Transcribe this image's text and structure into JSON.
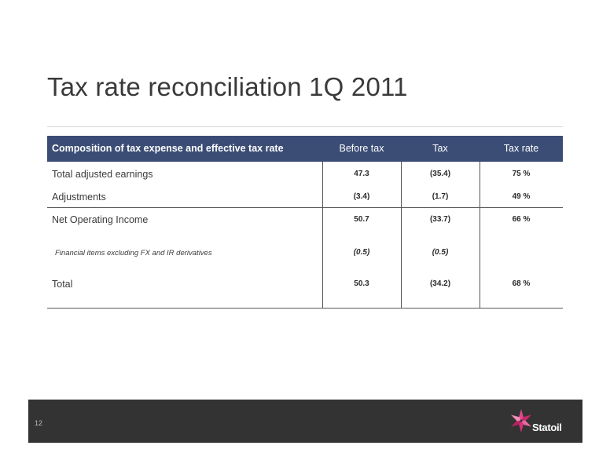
{
  "slide": {
    "title": "Tax rate reconciliation 1Q 2011",
    "page_number": "12",
    "brand_name": "Statoil"
  },
  "table": {
    "headers": {
      "composition": "Composition of tax expense and effective tax rate",
      "before_tax": "Before tax",
      "tax": "Tax",
      "tax_rate": "Tax rate"
    },
    "rows": [
      {
        "label": "Total adjusted earnings",
        "before_tax": "47.3",
        "tax": "(35.4)",
        "tax_rate": "75 %"
      },
      {
        "label": "Adjustments",
        "before_tax": "(3.4)",
        "tax": "(1.7)",
        "tax_rate": "49 %"
      },
      {
        "label": "Net Operating Income",
        "before_tax": "50.7",
        "tax": "(33.7)",
        "tax_rate": "66 %"
      },
      {
        "label": "Financial items excluding FX and IR derivatives",
        "before_tax": "(0.5)",
        "tax": "(0.5)",
        "tax_rate": ""
      },
      {
        "label": "Total",
        "before_tax": "50.3",
        "tax": "(34.2)",
        "tax_rate": "68 %"
      }
    ]
  },
  "colors": {
    "header_bg": "#3b4d75",
    "footer_bg": "#333333",
    "logo_accent": "#d6317a"
  },
  "icons": {
    "logo": "statoil-star-icon"
  }
}
